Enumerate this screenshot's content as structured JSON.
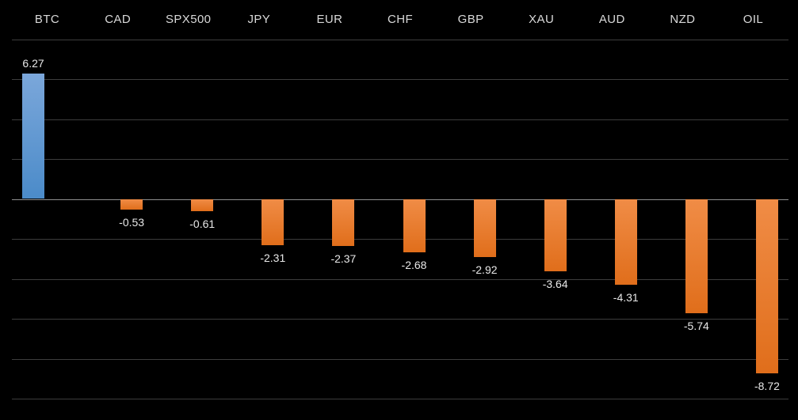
{
  "chart_data": {
    "type": "bar",
    "title": "",
    "xlabel": "",
    "ylabel": "",
    "categories": [
      "BTC",
      "CAD",
      "SPX500",
      "JPY",
      "EUR",
      "CHF",
      "GBP",
      "XAU",
      "AUD",
      "NZD",
      "OIL"
    ],
    "values": [
      6.27,
      -0.53,
      -0.61,
      -2.31,
      -2.37,
      -2.68,
      -2.92,
      -3.64,
      -4.31,
      -5.74,
      -8.72
    ],
    "value_labels": [
      "6.27",
      "-0.53",
      "-0.61",
      "-2.31",
      "-2.37",
      "-2.68",
      "-2.92",
      "-3.64",
      "-4.31",
      "-5.74",
      "-8.72"
    ],
    "ylim": [
      -10,
      8
    ],
    "gridline_step": 2,
    "grid": true,
    "legend": "none",
    "category_labels_position": "top",
    "colors": {
      "background": "#000000",
      "positive_bar_top": "#7ba7da",
      "positive_bar_bottom": "#4b8bc9",
      "negative_bar_top": "#f08c46",
      "negative_bar_bottom": "#e06e1b",
      "gridline": "#3d3d3d",
      "zero_line": "#8f8f8f",
      "category_label_text": "#d9d9d9",
      "value_label_text": "#e8e8e8"
    }
  }
}
